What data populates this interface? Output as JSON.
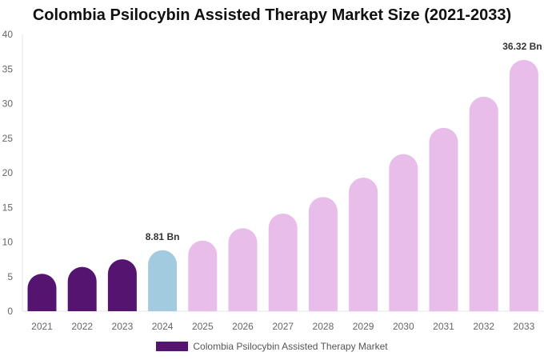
{
  "chart_data": {
    "type": "bar",
    "title": "Colombia Psilocybin Assisted Therapy Market Size (2021-2033)",
    "xlabel": "",
    "ylabel": "",
    "ylim": [
      0,
      40
    ],
    "yticks": [
      0,
      5,
      10,
      15,
      20,
      25,
      30,
      35,
      40
    ],
    "grid": false,
    "legend_position": "bottom",
    "categories": [
      "2021",
      "2022",
      "2023",
      "2024",
      "2025",
      "2026",
      "2027",
      "2028",
      "2029",
      "2030",
      "2031",
      "2032",
      "2033"
    ],
    "series": [
      {
        "name": "Colombia Psilocybin Assisted Therapy Market",
        "values": [
          5.4,
          6.4,
          7.5,
          8.81,
          10.2,
          12.0,
          14.1,
          16.5,
          19.3,
          22.7,
          26.5,
          31.0,
          36.32
        ]
      }
    ],
    "annotations": [
      {
        "category": "2024",
        "text": "8.81 Bn"
      },
      {
        "category": "2033",
        "text": "36.32 Bn"
      }
    ],
    "colors": {
      "historical": "#541470",
      "base_year": "#a3cbe0",
      "forecast": "#e8bde9"
    },
    "color_groups": [
      "historical",
      "historical",
      "historical",
      "base_year",
      "forecast",
      "forecast",
      "forecast",
      "forecast",
      "forecast",
      "forecast",
      "forecast",
      "forecast",
      "forecast"
    ]
  }
}
